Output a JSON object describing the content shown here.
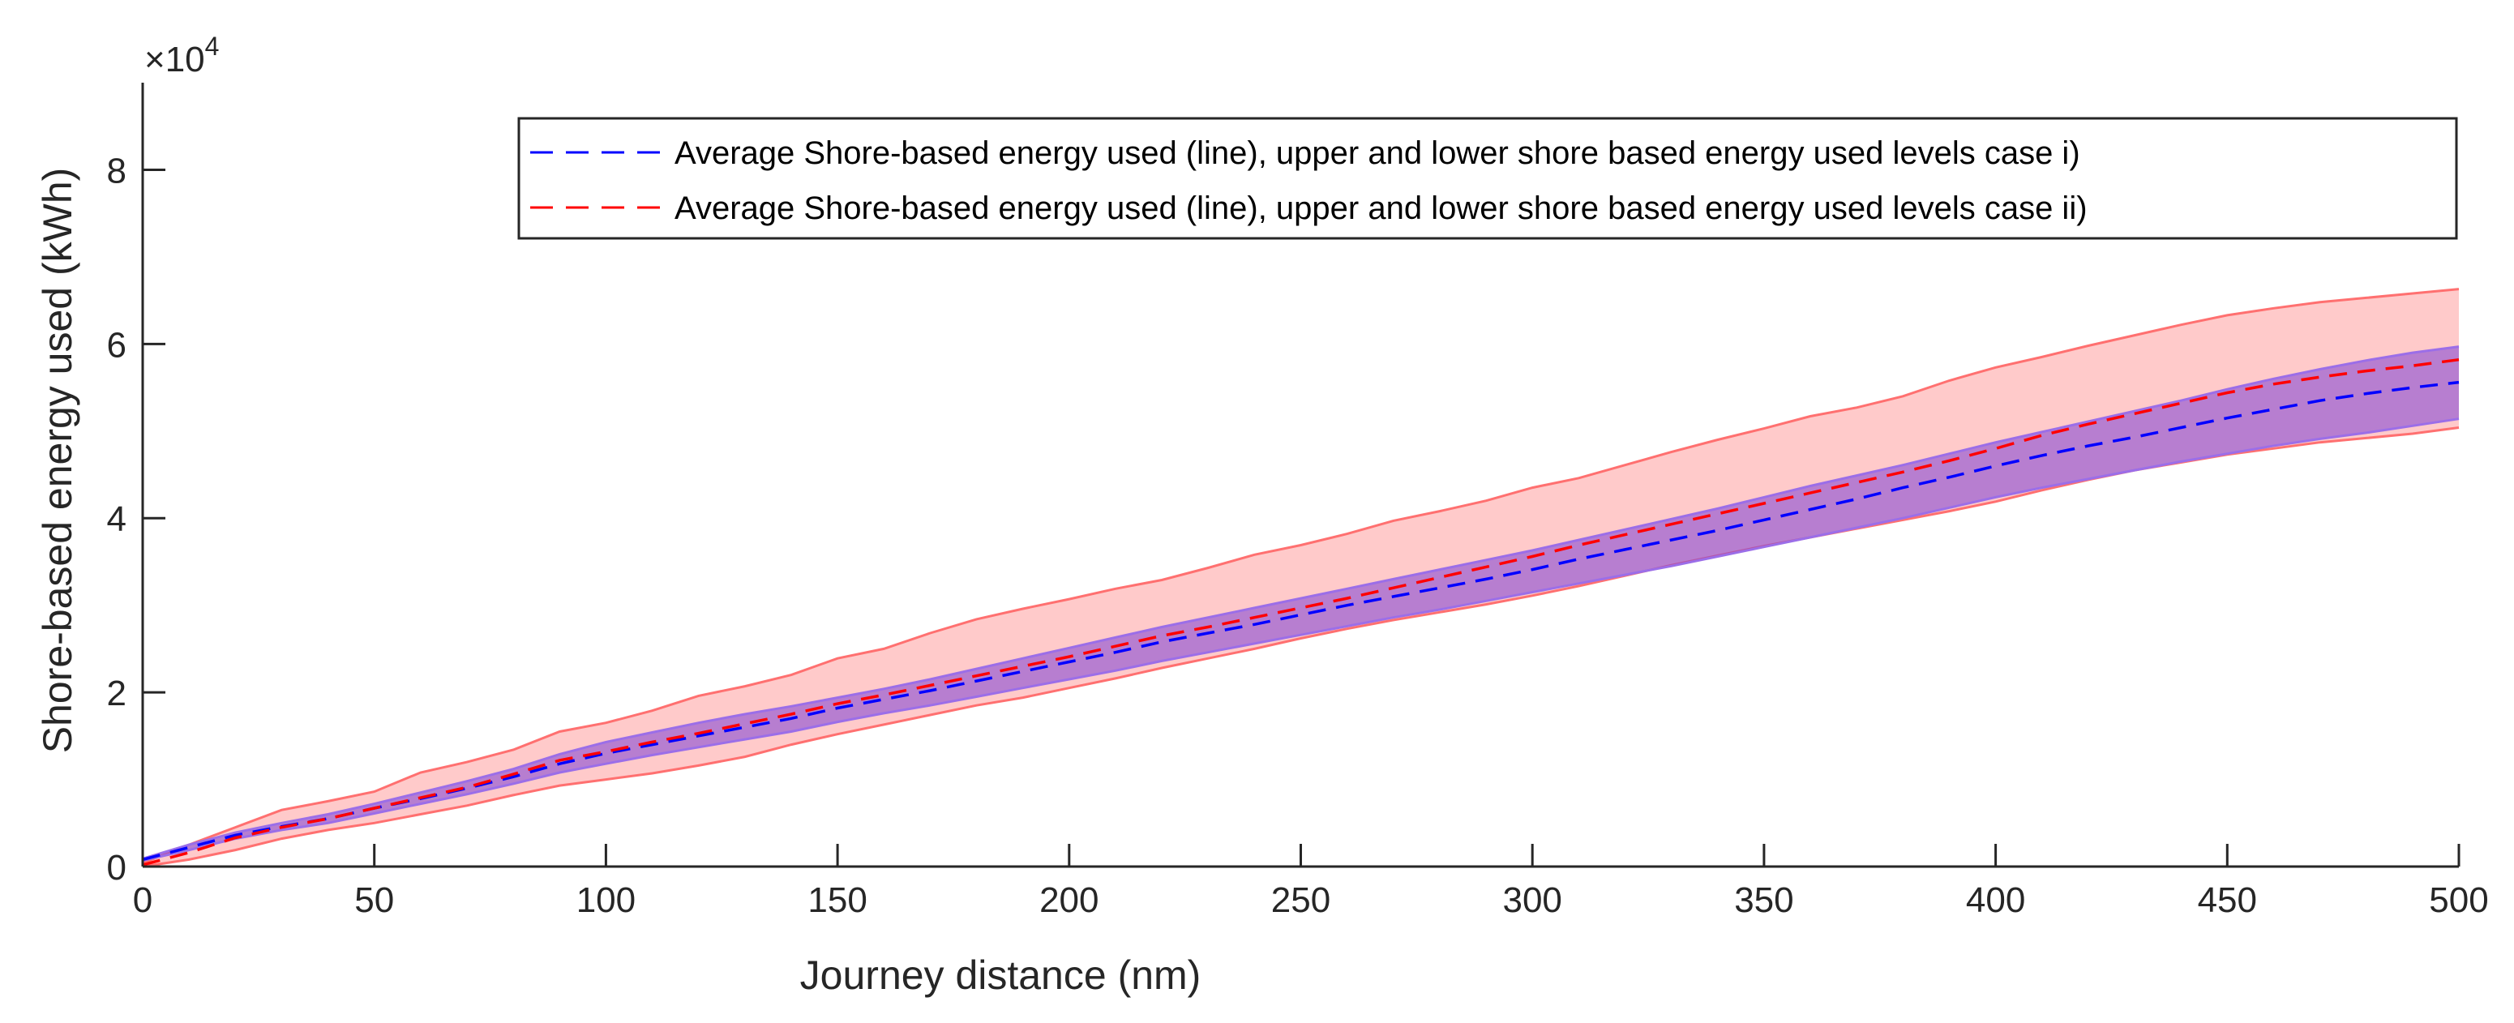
{
  "chart_data": {
    "type": "area",
    "xlabel": "Journey distance (nm)",
    "ylabel": "Shore-based energy used (kWh)",
    "y_exponent_base": "×10",
    "y_exponent_power": "4",
    "xlim": [
      0,
      500
    ],
    "ylim": [
      0,
      90000
    ],
    "xticks": [
      0,
      50,
      100,
      150,
      200,
      250,
      300,
      350,
      400,
      450,
      500
    ],
    "yticks": [
      0,
      20000,
      40000,
      60000,
      80000
    ],
    "xtick_labels": [
      "0",
      "50",
      "100",
      "150",
      "200",
      "250",
      "300",
      "350",
      "400",
      "450",
      "500"
    ],
    "ytick_labels": [
      "0",
      "2",
      "4",
      "6",
      "8"
    ],
    "legend_position": "top-right",
    "legend": [
      "Average Shore-based energy used (line), upper and lower shore based energy used levels case i)",
      "Average Shore-based energy used (line), upper and lower shore based energy used levels case ii)"
    ],
    "x": [
      0,
      10,
      20,
      30,
      40,
      50,
      60,
      70,
      80,
      90,
      100,
      110,
      120,
      130,
      140,
      150,
      160,
      170,
      180,
      190,
      200,
      210,
      220,
      230,
      240,
      250,
      260,
      270,
      280,
      290,
      300,
      310,
      320,
      330,
      340,
      350,
      360,
      370,
      380,
      390,
      400,
      410,
      420,
      430,
      440,
      450,
      460,
      470,
      480,
      490,
      500
    ],
    "series": [
      {
        "name": "case i)",
        "color": "#0000ff",
        "band_color": "#7b3fd6",
        "band_edge_color": "#9b6ee8",
        "mean": [
          800,
          2200,
          3600,
          4600,
          5500,
          6700,
          7800,
          9000,
          10300,
          11800,
          13000,
          14000,
          15000,
          16000,
          17000,
          18200,
          19200,
          20200,
          21300,
          22400,
          23500,
          24600,
          25800,
          26800,
          27800,
          28900,
          30000,
          31000,
          32000,
          33000,
          34100,
          35300,
          36400,
          37500,
          38600,
          39800,
          41000,
          42200,
          43500,
          44700,
          46000,
          47200,
          48300,
          49300,
          50400,
          51500,
          52500,
          53500,
          54300,
          55000,
          55600
        ],
        "upper": [
          900,
          2500,
          3900,
          5000,
          6000,
          7200,
          8500,
          9800,
          11200,
          12900,
          14300,
          15400,
          16500,
          17500,
          18400,
          19400,
          20400,
          21500,
          22700,
          23900,
          25100,
          26300,
          27500,
          28600,
          29700,
          30800,
          31900,
          33000,
          34100,
          35200,
          36300,
          37500,
          38700,
          39900,
          41100,
          42400,
          43700,
          44900,
          46100,
          47400,
          48700,
          49900,
          51100,
          52300,
          53500,
          54800,
          56000,
          57100,
          58100,
          59000,
          59700
        ],
        "lower": [
          700,
          1900,
          3200,
          4200,
          5000,
          6100,
          7200,
          8300,
          9500,
          10800,
          11800,
          12800,
          13700,
          14600,
          15500,
          16600,
          17600,
          18500,
          19500,
          20500,
          21500,
          22500,
          23600,
          24600,
          25600,
          26600,
          27600,
          28600,
          29500,
          30500,
          31500,
          32500,
          33500,
          34500,
          35600,
          36700,
          37800,
          38900,
          40000,
          41200,
          42400,
          43500,
          44500,
          45500,
          46500,
          47400,
          48300,
          49100,
          49800,
          50600,
          51400
        ]
      },
      {
        "name": "case ii)",
        "color": "#ff0000",
        "band_color": "#ff8a8a",
        "band_edge_color": "#ff7070",
        "mean": [
          200,
          1600,
          3300,
          4500,
          5500,
          6700,
          7900,
          9100,
          10600,
          12200,
          13200,
          14300,
          15300,
          16400,
          17500,
          18700,
          19700,
          20800,
          21900,
          23000,
          24100,
          25300,
          26500,
          27500,
          28600,
          29700,
          30800,
          32000,
          33200,
          34400,
          35600,
          36900,
          38100,
          39300,
          40500,
          41700,
          42900,
          44100,
          45300,
          46600,
          48000,
          49500,
          50800,
          52000,
          53200,
          54400,
          55400,
          56200,
          56900,
          57500,
          58200
        ],
        "upper": [
          400,
          2500,
          4500,
          6500,
          7500,
          8600,
          10800,
          12000,
          13400,
          15500,
          16500,
          17900,
          19600,
          20700,
          22000,
          23900,
          25000,
          26800,
          28400,
          29600,
          30700,
          31900,
          32900,
          34300,
          35800,
          36900,
          38200,
          39700,
          40800,
          42000,
          43500,
          44600,
          46100,
          47600,
          49000,
          50300,
          51700,
          52700,
          54000,
          55800,
          57300,
          58500,
          59800,
          61000,
          62200,
          63300,
          64100,
          64800,
          65300,
          65800,
          66300
        ],
        "lower": [
          0,
          800,
          1900,
          3200,
          4200,
          5000,
          6000,
          7000,
          8200,
          9300,
          10000,
          10700,
          11600,
          12600,
          14000,
          15200,
          16300,
          17400,
          18500,
          19400,
          20500,
          21600,
          22800,
          23900,
          25000,
          26200,
          27300,
          28300,
          29200,
          30100,
          31100,
          32200,
          33400,
          34600,
          35700,
          36800,
          37800,
          38800,
          39800,
          40800,
          41900,
          43200,
          44400,
          45500,
          46400,
          47300,
          48000,
          48700,
          49200,
          49700,
          50400
        ]
      }
    ]
  }
}
